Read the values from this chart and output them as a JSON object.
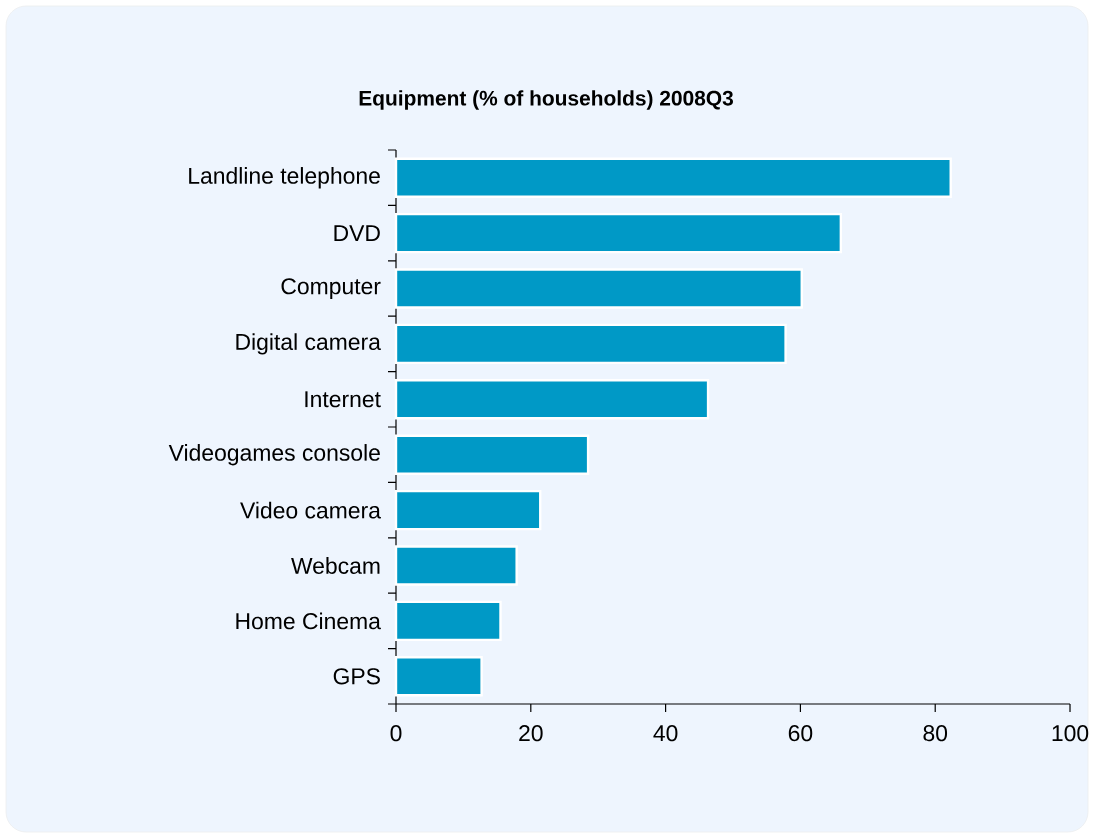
{
  "chart_data": {
    "type": "bar",
    "orientation": "horizontal",
    "title": "Equipment (% of households) 2008Q3",
    "categories": [
      "Landline telephone",
      "DVD",
      "Computer",
      "Digital camera",
      "Internet",
      "Videogames console",
      "Video camera",
      "Webcam",
      "Home Cinema",
      "GPS"
    ],
    "values": [
      82.3,
      66.0,
      60.2,
      57.8,
      46.3,
      28.5,
      21.4,
      17.9,
      15.5,
      12.7
    ],
    "color": "#0099c6",
    "xlim": [
      0,
      100
    ],
    "xticks": [
      0,
      20,
      40,
      60,
      80,
      100
    ]
  }
}
